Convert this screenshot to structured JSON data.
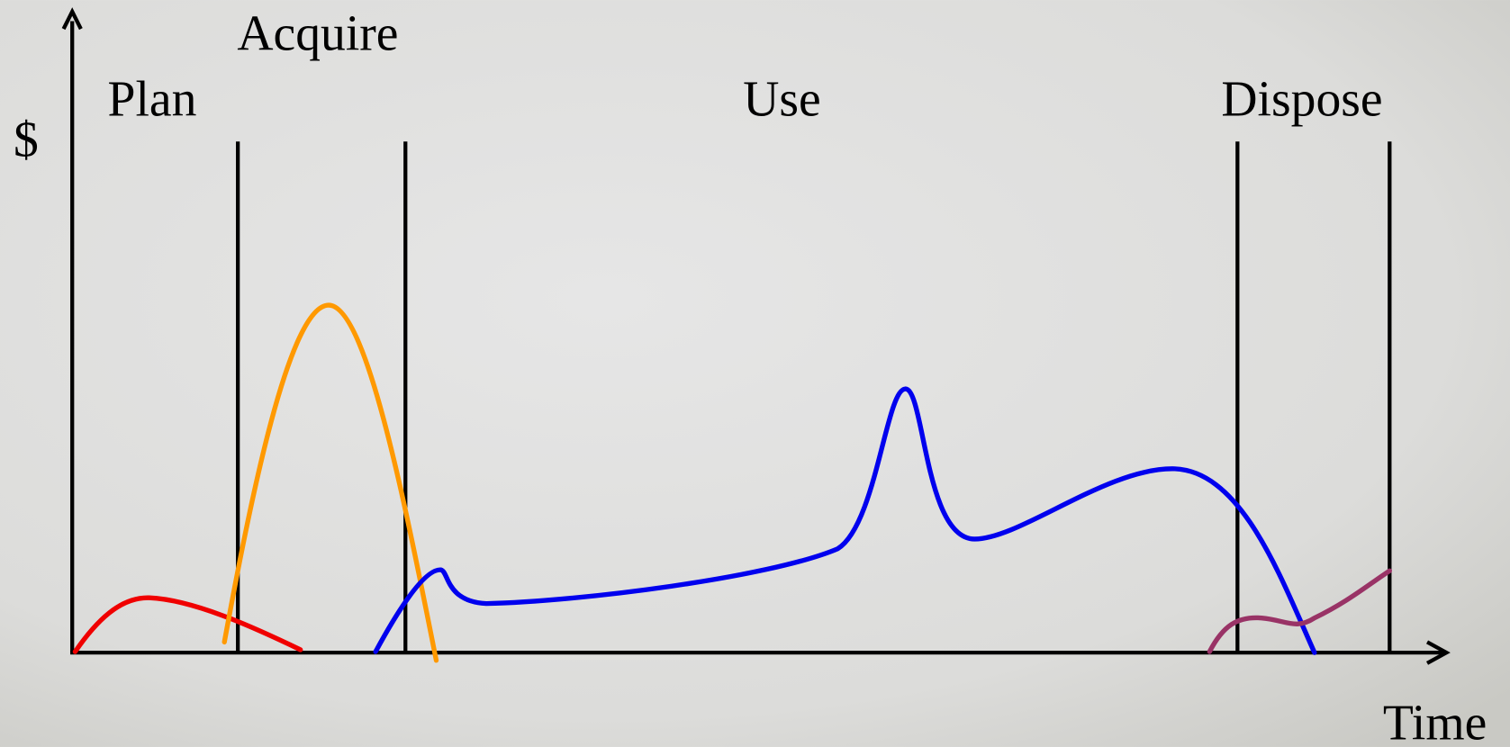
{
  "labels": {
    "acquire": "Acquire",
    "plan": "Plan",
    "use": "Use",
    "dispose": "Dispose",
    "y_axis": "$",
    "x_axis": "Time"
  }
}
